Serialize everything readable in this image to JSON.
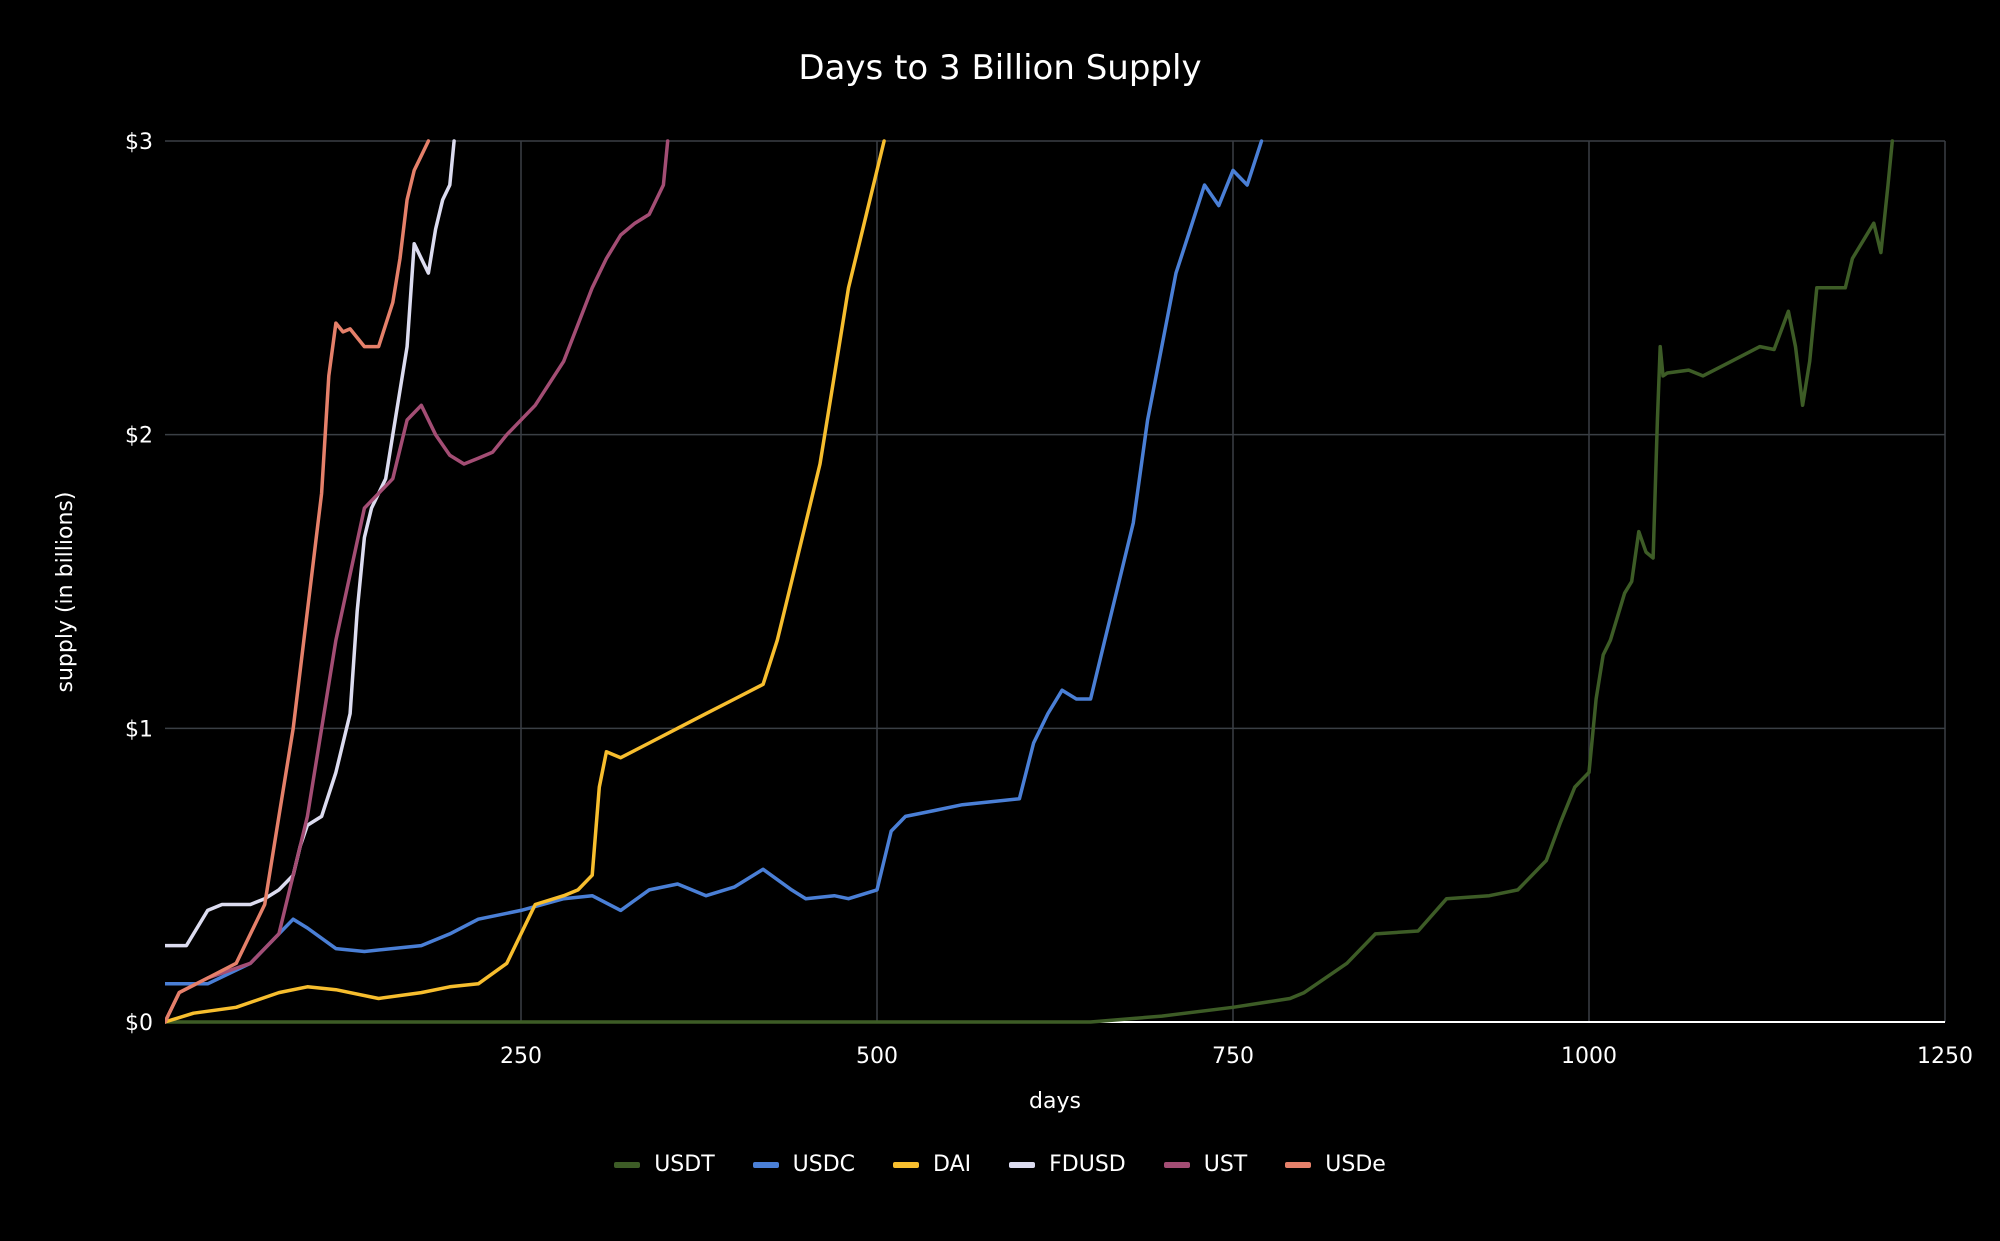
{
  "chart_data": {
    "type": "line",
    "title": "Days to 3 Billion Supply",
    "xlabel": "days",
    "ylabel": "supply (in billions)",
    "xlim": [
      0,
      1250
    ],
    "ylim": [
      0,
      3
    ],
    "x_ticks": [
      250,
      500,
      750,
      1000,
      1250
    ],
    "y_ticks": [
      0,
      1,
      2,
      3
    ],
    "y_tick_labels": [
      "$0",
      "$1",
      "$2",
      "$3"
    ],
    "grid": true,
    "legend_position": "bottom-center",
    "series": [
      {
        "name": "USDT",
        "color": "#3d5c26",
        "x": [
          0,
          200,
          400,
          600,
          650,
          700,
          750,
          790,
          800,
          830,
          850,
          880,
          900,
          930,
          950,
          970,
          980,
          990,
          1000,
          1005,
          1010,
          1015,
          1020,
          1025,
          1030,
          1035,
          1040,
          1045,
          1048,
          1050,
          1052,
          1055,
          1070,
          1080,
          1100,
          1120,
          1130,
          1140,
          1145,
          1150,
          1155,
          1160,
          1165,
          1180,
          1185,
          1200,
          1205,
          1210,
          1213
        ],
        "y": [
          0,
          0,
          0,
          0,
          0,
          0.02,
          0.05,
          0.08,
          0.1,
          0.2,
          0.3,
          0.31,
          0.42,
          0.43,
          0.45,
          0.55,
          0.68,
          0.8,
          0.85,
          1.1,
          1.25,
          1.3,
          1.38,
          1.46,
          1.5,
          1.67,
          1.6,
          1.58,
          2.05,
          2.3,
          2.2,
          2.21,
          2.22,
          2.2,
          2.25,
          2.3,
          2.29,
          2.42,
          2.3,
          2.1,
          2.25,
          2.5,
          2.5,
          2.5,
          2.6,
          2.72,
          2.62,
          2.85,
          3.0
        ]
      },
      {
        "name": "USDC",
        "color": "#4a7fd6",
        "x": [
          0,
          30,
          60,
          80,
          90,
          100,
          120,
          140,
          180,
          200,
          220,
          250,
          280,
          300,
          320,
          340,
          360,
          380,
          400,
          420,
          440,
          450,
          470,
          480,
          500,
          510,
          520,
          540,
          560,
          580,
          600,
          610,
          620,
          630,
          640,
          650,
          660,
          670,
          680,
          690,
          700,
          710,
          720,
          730,
          740,
          750,
          760,
          770
        ],
        "y": [
          0.13,
          0.13,
          0.2,
          0.3,
          0.35,
          0.32,
          0.25,
          0.24,
          0.26,
          0.3,
          0.35,
          0.38,
          0.42,
          0.43,
          0.38,
          0.45,
          0.47,
          0.43,
          0.46,
          0.52,
          0.45,
          0.42,
          0.43,
          0.42,
          0.45,
          0.65,
          0.7,
          0.72,
          0.74,
          0.75,
          0.76,
          0.95,
          1.05,
          1.13,
          1.1,
          1.1,
          1.3,
          1.5,
          1.7,
          2.05,
          2.3,
          2.55,
          2.7,
          2.85,
          2.78,
          2.9,
          2.85,
          3.0
        ]
      },
      {
        "name": "DAI",
        "color": "#f7be2e",
        "x": [
          0,
          20,
          50,
          80,
          100,
          120,
          150,
          180,
          200,
          220,
          240,
          250,
          260,
          280,
          290,
          300,
          305,
          310,
          320,
          340,
          360,
          380,
          400,
          420,
          430,
          440,
          450,
          460,
          470,
          480,
          490,
          500,
          505
        ],
        "y": [
          0,
          0.03,
          0.05,
          0.1,
          0.12,
          0.11,
          0.08,
          0.1,
          0.12,
          0.13,
          0.2,
          0.3,
          0.4,
          0.43,
          0.45,
          0.5,
          0.8,
          0.92,
          0.9,
          0.95,
          1.0,
          1.05,
          1.1,
          1.15,
          1.3,
          1.5,
          1.7,
          1.9,
          2.2,
          2.5,
          2.7,
          2.9,
          3.0
        ]
      },
      {
        "name": "FDUSD",
        "color": "#dcdcf0",
        "x": [
          0,
          15,
          20,
          30,
          40,
          60,
          70,
          80,
          90,
          95,
          100,
          110,
          120,
          125,
          130,
          135,
          140,
          145,
          150,
          155,
          160,
          170,
          175,
          180,
          185,
          190,
          195,
          200,
          203
        ],
        "y": [
          0.26,
          0.26,
          0.3,
          0.38,
          0.4,
          0.4,
          0.42,
          0.45,
          0.5,
          0.6,
          0.67,
          0.7,
          0.85,
          0.95,
          1.05,
          1.4,
          1.65,
          1.75,
          1.8,
          1.85,
          2.0,
          2.3,
          2.65,
          2.6,
          2.55,
          2.7,
          2.8,
          2.85,
          3.0
        ]
      },
      {
        "name": "UST",
        "color": "#a34d74",
        "x": [
          0,
          10,
          30,
          60,
          80,
          100,
          120,
          140,
          160,
          170,
          180,
          190,
          200,
          210,
          220,
          230,
          240,
          260,
          280,
          300,
          310,
          320,
          330,
          340,
          350,
          353
        ],
        "y": [
          0,
          0.1,
          0.15,
          0.2,
          0.3,
          0.7,
          1.3,
          1.75,
          1.85,
          2.05,
          2.1,
          2.0,
          1.93,
          1.9,
          1.92,
          1.94,
          2.0,
          2.1,
          2.25,
          2.5,
          2.6,
          2.68,
          2.72,
          2.75,
          2.85,
          3.0
        ]
      },
      {
        "name": "USDe",
        "color": "#e5806a",
        "x": [
          0,
          10,
          30,
          50,
          70,
          80,
          90,
          100,
          110,
          115,
          120,
          125,
          130,
          140,
          150,
          160,
          165,
          170,
          175,
          180,
          185
        ],
        "y": [
          0,
          0.1,
          0.15,
          0.2,
          0.4,
          0.7,
          1.0,
          1.4,
          1.8,
          2.2,
          2.38,
          2.35,
          2.36,
          2.3,
          2.3,
          2.45,
          2.6,
          2.8,
          2.9,
          2.95,
          3.0
        ]
      }
    ]
  }
}
